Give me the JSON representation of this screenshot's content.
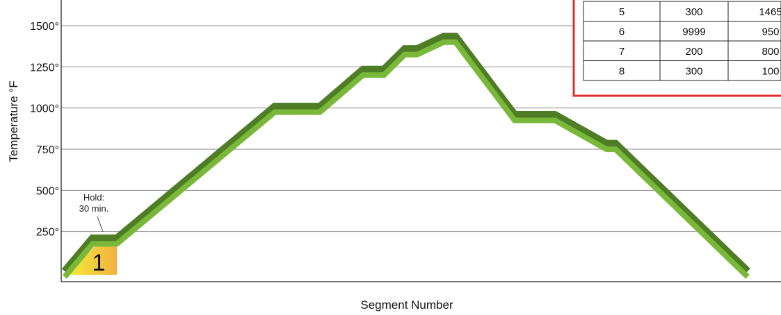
{
  "chart_data": {
    "type": "line",
    "title": "",
    "xlabel": "Segment Number",
    "ylabel": "Temperature °F",
    "ylim": [
      0,
      1650
    ],
    "y_ticks": [
      {
        "value": 250,
        "label": "250°"
      },
      {
        "value": 500,
        "label": "500°"
      },
      {
        "value": 750,
        "label": "750°"
      },
      {
        "value": 1000,
        "label": "1000°"
      },
      {
        "value": 1250,
        "label": "1250°"
      },
      {
        "value": 1500,
        "label": "1500°"
      }
    ],
    "grid": true,
    "series": [
      {
        "values": [
          0,
          200,
          200,
          1000,
          1000,
          1225,
          1225,
          1350,
          1350,
          1425,
          1425,
          950,
          950,
          775,
          775,
          0
        ]
      }
    ],
    "annotations": {
      "hold_label_line1": "Hold:",
      "hold_label_line2": "30 min.",
      "segment_label": "1"
    },
    "table": {
      "rows": [
        [
          "5",
          "300",
          "1465"
        ],
        [
          "6",
          "9999",
          "950"
        ],
        [
          "7",
          "200",
          "800"
        ],
        [
          "8",
          "300",
          "100"
        ]
      ]
    },
    "colors": {
      "line_light": "#7ab83a",
      "line_dark": "#4e7d26",
      "table_border": "#e0312e",
      "segment_fill_top": "#f4ea3a",
      "segment_fill_bottom": "#f2c23c"
    }
  }
}
